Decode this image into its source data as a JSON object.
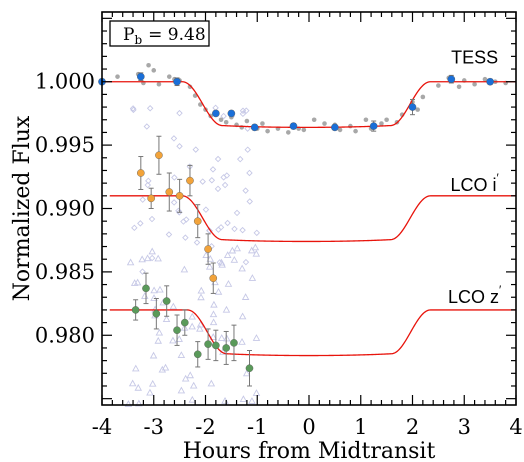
{
  "chart_data": {
    "type": "scatter",
    "xlabel": "Hours from Midtransit",
    "ylabel": "Normalized Flux",
    "xlim": [
      -4,
      4
    ],
    "ylim": [
      0.9745,
      1.0055
    ],
    "x_ticks": [
      -4,
      -3,
      -2,
      -1,
      0,
      1,
      2,
      3,
      4
    ],
    "x_tick_labels": [
      "-4",
      "-3",
      "-2",
      "-1",
      "0",
      "1",
      "2",
      "3",
      "4"
    ],
    "y_ticks": [
      0.98,
      0.985,
      0.99,
      0.995,
      1.0
    ],
    "y_tick_labels": [
      "0.980",
      "0.985",
      "0.990",
      "0.995",
      "1.000"
    ],
    "annotation": {
      "main": "P",
      "sub": "b",
      "value": "= 9.48"
    },
    "colors": {
      "model": "#e8140c",
      "tess_raw": "#a8a8a8",
      "tess_binned": "#1a6fd8",
      "lco_i_binned": "#f2a33a",
      "lco_z_binned": "#5a9a5a",
      "raw_open": "#c6c8e6",
      "errorbar": "#777777"
    },
    "series": [
      {
        "name": "TESS",
        "baseline": 1.0,
        "depth": 0.0036,
        "transit_window": [
          -2.45,
          2.35
        ],
        "raw": [
          {
            "x": -3.7,
            "y": 1.0004
          },
          {
            "x": -3.3,
            "y": 1.0006
          },
          {
            "x": -3.2,
            "y": 0.9999
          },
          {
            "x": -3.1,
            "y": 1.0013
          },
          {
            "x": -3.0,
            "y": 1.0009
          },
          {
            "x": -2.9,
            "y": 0.9998
          },
          {
            "x": -2.7,
            "y": 1.0004
          },
          {
            "x": -2.6,
            "y": 1.0002
          },
          {
            "x": -2.5,
            "y": 1.0001
          },
          {
            "x": -2.3,
            "y": 0.9996
          },
          {
            "x": -2.2,
            "y": 0.9989
          },
          {
            "x": -2.1,
            "y": 0.9982
          },
          {
            "x": -2.0,
            "y": 0.9978
          },
          {
            "x": -1.9,
            "y": 0.9973
          },
          {
            "x": -1.8,
            "y": 0.9975
          },
          {
            "x": -1.7,
            "y": 0.997
          },
          {
            "x": -1.6,
            "y": 0.9968
          },
          {
            "x": -1.5,
            "y": 0.9972
          },
          {
            "x": -1.4,
            "y": 0.9966
          },
          {
            "x": -1.3,
            "y": 0.9964
          },
          {
            "x": -1.2,
            "y": 0.9969
          },
          {
            "x": -1.0,
            "y": 0.9963
          },
          {
            "x": -0.9,
            "y": 0.9967
          },
          {
            "x": -0.8,
            "y": 0.9961
          },
          {
            "x": -0.6,
            "y": 0.9963
          },
          {
            "x": -0.4,
            "y": 0.996
          },
          {
            "x": -0.2,
            "y": 0.9963
          },
          {
            "x": -0.1,
            "y": 0.9962
          },
          {
            "x": 0.1,
            "y": 0.997
          },
          {
            "x": 0.3,
            "y": 0.9967
          },
          {
            "x": 0.5,
            "y": 0.9966
          },
          {
            "x": 0.6,
            "y": 0.9962
          },
          {
            "x": 0.8,
            "y": 0.9965
          },
          {
            "x": 0.9,
            "y": 0.9961
          },
          {
            "x": 1.1,
            "y": 0.997
          },
          {
            "x": 1.2,
            "y": 0.9963
          },
          {
            "x": 1.4,
            "y": 0.9967
          },
          {
            "x": 1.5,
            "y": 0.997
          },
          {
            "x": 1.7,
            "y": 0.9968
          },
          {
            "x": 1.8,
            "y": 0.9974
          },
          {
            "x": 2.0,
            "y": 0.9984
          },
          {
            "x": 2.1,
            "y": 0.9978
          },
          {
            "x": 2.2,
            "y": 0.9988
          },
          {
            "x": 2.5,
            "y": 0.9997
          },
          {
            "x": 2.7,
            "y": 1.0003
          },
          {
            "x": 2.9,
            "y": 0.9996
          },
          {
            "x": 3.0,
            "y": 1.0001
          },
          {
            "x": 3.2,
            "y": 0.9998
          },
          {
            "x": 3.4,
            "y": 1.0002
          },
          {
            "x": 3.6,
            "y": 1.0
          },
          {
            "x": 3.8,
            "y": 0.9999
          }
        ],
        "binned": [
          {
            "x": -4.0,
            "y": 1.0,
            "err": 0.0002
          },
          {
            "x": -3.25,
            "y": 1.0004,
            "err": 0.0003
          },
          {
            "x": -2.55,
            "y": 1.0,
            "err": 0.0003
          },
          {
            "x": -1.8,
            "y": 0.9975,
            "err": 0.0002
          },
          {
            "x": -1.5,
            "y": 0.9975,
            "err": 0.0002
          },
          {
            "x": -1.05,
            "y": 0.9964,
            "err": 0.0002
          },
          {
            "x": -0.3,
            "y": 0.9965,
            "err": 0.0002
          },
          {
            "x": 0.5,
            "y": 0.9964,
            "err": 0.0002
          },
          {
            "x": 1.25,
            "y": 0.9965,
            "err": 0.0004
          },
          {
            "x": 2.0,
            "y": 0.998,
            "err": 0.0006
          },
          {
            "x": 2.75,
            "y": 1.0002,
            "err": 0.0003
          },
          {
            "x": 3.5,
            "y": 1.0,
            "err": 0.0002
          }
        ]
      },
      {
        "name": "LCO i",
        "superscript": "′",
        "baseline": 0.991,
        "depth": 0.0036,
        "transit_window": [
          -2.45,
          2.35
        ],
        "binned": [
          {
            "x": -3.25,
            "y": 0.9928,
            "err": 0.0013
          },
          {
            "x": -3.05,
            "y": 0.9908,
            "err": 0.0008
          },
          {
            "x": -2.9,
            "y": 0.9942,
            "err": 0.0015
          },
          {
            "x": -2.7,
            "y": 0.9913,
            "err": 0.0015
          },
          {
            "x": -2.5,
            "y": 0.991,
            "err": 0.0013
          },
          {
            "x": -2.3,
            "y": 0.9922,
            "err": 0.0012
          },
          {
            "x": -2.15,
            "y": 0.989,
            "err": 0.0013
          },
          {
            "x": -1.95,
            "y": 0.9868,
            "err": 0.0012
          },
          {
            "x": -1.85,
            "y": 0.9845,
            "err": 0.0012
          }
        ]
      },
      {
        "name": "LCO z",
        "superscript": "′",
        "baseline": 0.982,
        "depth": 0.0036,
        "transit_window": [
          -2.35,
          2.35
        ],
        "binned": [
          {
            "x": -3.35,
            "y": 0.982,
            "err": 0.0008
          },
          {
            "x": -3.15,
            "y": 0.9837,
            "err": 0.0012
          },
          {
            "x": -2.95,
            "y": 0.9817,
            "err": 0.0012
          },
          {
            "x": -2.75,
            "y": 0.9827,
            "err": 0.0012
          },
          {
            "x": -2.55,
            "y": 0.9804,
            "err": 0.0012
          },
          {
            "x": -2.4,
            "y": 0.981,
            "err": 0.001
          },
          {
            "x": -2.15,
            "y": 0.9785,
            "err": 0.001
          },
          {
            "x": -1.95,
            "y": 0.9793,
            "err": 0.0012
          },
          {
            "x": -1.8,
            "y": 0.9792,
            "err": 0.0012
          },
          {
            "x": -1.6,
            "y": 0.979,
            "err": 0.0013
          },
          {
            "x": -1.45,
            "y": 0.9794,
            "err": 0.0014
          },
          {
            "x": -1.15,
            "y": 0.9774,
            "err": 0.0014
          }
        ]
      }
    ],
    "raw_ground_points": {
      "diamond_x_range": [
        -3.4,
        -1.0
      ],
      "diamond_y_range": [
        0.985,
        0.999
      ],
      "triangle_x_range": [
        -3.5,
        -1.0
      ],
      "triangle_y_range": [
        0.9745,
        0.987
      ]
    }
  }
}
